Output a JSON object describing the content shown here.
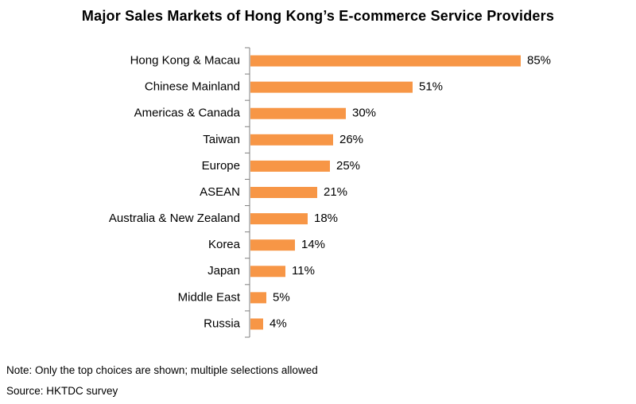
{
  "chart_data": {
    "type": "bar",
    "orientation": "horizontal",
    "title": "Major Sales Markets of Hong Kong’s E-commerce Service Providers",
    "categories": [
      "Hong Kong & Macau",
      "Chinese Mainland",
      "Americas & Canada",
      "Taiwan",
      "Europe",
      "ASEAN",
      "Australia & New Zealand",
      "Korea",
      "Japan",
      "Middle East",
      "Russia"
    ],
    "values": [
      85,
      51,
      30,
      26,
      25,
      21,
      18,
      14,
      11,
      5,
      4
    ],
    "value_labels": [
      "85%",
      "51%",
      "30%",
      "26%",
      "25%",
      "21%",
      "18%",
      "14%",
      "11%",
      "5%",
      "4%"
    ],
    "unit": "%",
    "xlabel": "",
    "ylabel": "",
    "grid": false,
    "legend": "none",
    "bar_color": "#F79646"
  },
  "footnotes": {
    "note": "Note: Only the top choices are shown; multiple selections allowed",
    "source": "Source: HKTDC survey"
  }
}
